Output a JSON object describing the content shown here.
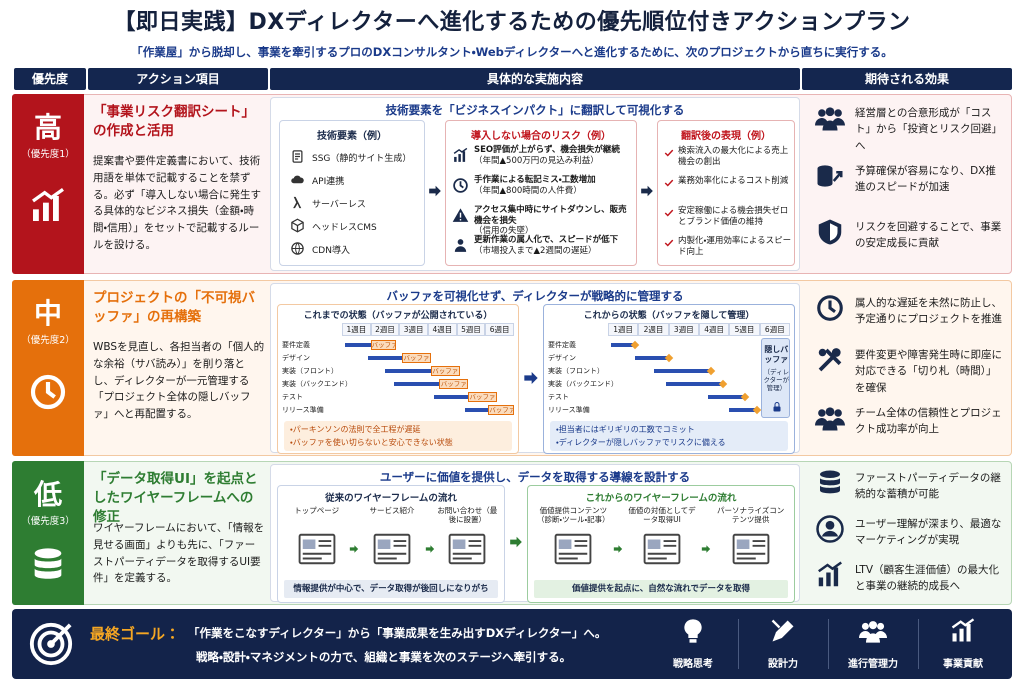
{
  "header": {
    "title": "【即日実践】DXディレクターへ進化するための優先順位付きアクションプラン",
    "subtitle": "「作業屋」から脱却し、事業を牽引するプロのDXコンサルタント・Webディレクターへと進化するために、次のプロジェクトから直ちに実行する。"
  },
  "table": {
    "columns": [
      "優先度",
      "アクション項目",
      "具体的な実施内容",
      "期待される効果"
    ],
    "rows": [
      {
        "priority": "高",
        "rank": "（優先度1）",
        "action_title": "「事業リスク翻訳シート」の作成と活用",
        "action_body": "提案書や要件定義書において、技術用語を単体で記載することを禁ずる。必ず「導入しない場合に発生する具体的なビジネス損失（金額・時間・信用）」をセットで記載するルールを設ける。",
        "content": {
          "heading": "技術要素を「ビジネスインパクト」に翻訳して可視化する",
          "tech": {
            "title": "技術要素（例）",
            "items": [
              "SSG（静的サイト生成）",
              "API連携",
              "サーバーレス",
              "ヘッドレスCMS",
              "CDN導入"
            ]
          },
          "risks": {
            "title": "導入しない場合のリスク（例）",
            "items": [
              {
                "text": "SEO評価が上がらず、機会損失が継続",
                "note": "（年間▲500万円の見込み利益）"
              },
              {
                "text": "手作業による転記ミス・工数増加",
                "note": "（年間▲800時間の人件費）"
              },
              {
                "text": "アクセス集中時にサイトダウンし、販売機会を損失",
                "note": "（信用の失墜）"
              },
              {
                "text": "更新作業の属人化で、スピードが低下",
                "note": "（市場投入まで▲2週間の遅延）"
              }
            ]
          },
          "translated": {
            "title": "翻訳後の表現（例）",
            "items": [
              "検索流入の最大化による売上機会の創出",
              "業務効率化によるコスト削減",
              "安定稼働による機会損失ゼロとブランド価値の維持",
              "内製化・運用効率によるスピード向上"
            ]
          }
        },
        "effects": [
          "経営層との合意形成が「コスト」から「投資とリスク回避」へ",
          "予算確保が容易になり、DX推進のスピードが加速",
          "リスクを回避することで、事業の安定成長に貢献"
        ]
      },
      {
        "priority": "中",
        "rank": "（優先度2）",
        "action_title": "プロジェクトの「不可視バッファ」の再構築",
        "action_body": "WBSを見直し、各担当者の「個人的な余裕（サバ読み）」を削り落とし、ディレクターが一元管理する「プロジェクト全体の隠しバッファ」へと再配置する。",
        "content": {
          "heading": "バッファを可視化せず、ディレクターが戦略的に管理する",
          "weeks": [
            "1週目",
            "2週目",
            "3週目",
            "4週目",
            "5週目",
            "6週目"
          ],
          "tasks": [
            "要件定義",
            "デザイン",
            "実装（フロント）",
            "実装（バックエンド）",
            "テスト",
            "リリース準備"
          ],
          "buffer_label": "バッファ",
          "before": {
            "title": "これまでの状態（バッファが公開されている）",
            "notes": [
              "・パーキンソンの法則で全工程が遅延",
              "・バッファを使い切らないと安心できない状態"
            ]
          },
          "after": {
            "title": "これからの状態（バッファを隠して管理）",
            "hidden_title": "隠しバッファ",
            "hidden_note": "（ディレクターが管理）",
            "notes": [
              "・担当者にはギリギリの工数でコミット",
              "・ディレクターが隠しバッファでリスクに備える"
            ]
          }
        },
        "effects": [
          "属人的な遅延を未然に防止し、予定通りにプロジェクトを推進",
          "要件変更や障害発生時に即座に対応できる「切り札（時間）」を確保",
          "チーム全体の信頼性とプロジェクト成功率が向上"
        ]
      },
      {
        "priority": "低",
        "rank": "（優先度3）",
        "action_title": "「データ取得UI」を起点としたワイヤーフレームへの修正",
        "action_body": "ワイヤーフレームにおいて、「情報を見せる画面」よりも先に、「ファーストパーティデータを取得するUI要件」を定義する。",
        "content": {
          "heading": "ユーザーに価値を提供し、データを取得する導線を設計する",
          "before": {
            "title": "従来のワイヤーフレームの流れ",
            "steps": [
              "トップページ",
              "サービス紹介",
              "お問い合わせ（最後に設置）"
            ],
            "note": "情報提供が中心で、データ取得が後回しになりがち"
          },
          "after": {
            "title": "これからのワイヤーフレームの流れ",
            "steps": [
              "価値提供コンテンツ（診断・ツール・記事）",
              "価値の対価としてデータ取得UI",
              "パーソナライズコンテンツ提供"
            ],
            "note": "価値提供を起点に、自然な流れでデータを取得"
          }
        },
        "effects": [
          "ファーストパーティデータの継続的な蓄積が可能",
          "ユーザー理解が深まり、最適なマーケティングが実現",
          "LTV（顧客生涯価値）の最大化と事業の継続的成長へ"
        ]
      }
    ]
  },
  "footer": {
    "label": "最終ゴール：",
    "lines": [
      "「作業をこなすディレクター」から「事業成果を生み出すDXディレクター」へ。",
      "戦略・設計・マネジメントの力で、組織と事業を次のステージへ牽引する。"
    ],
    "skills": [
      "戦略思考",
      "設計力",
      "進行管理力",
      "事業貢献"
    ]
  }
}
